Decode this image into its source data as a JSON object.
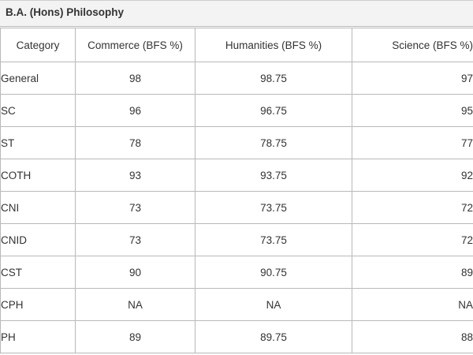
{
  "table": {
    "title": "B.A. (Hons) Philosophy",
    "headers": [
      "Category",
      "Commerce (BFS %)",
      "Humanities (BFS %)",
      "Science (BFS %)"
    ],
    "rows": [
      {
        "category": "General",
        "commerce": "98",
        "humanities": "98.75",
        "science": "97"
      },
      {
        "category": "SC",
        "commerce": "96",
        "humanities": "96.75",
        "science": "95"
      },
      {
        "category": "ST",
        "commerce": "78",
        "humanities": "78.75",
        "science": "77"
      },
      {
        "category": "COTH",
        "commerce": "93",
        "humanities": "93.75",
        "science": "92"
      },
      {
        "category": "CNI",
        "commerce": "73",
        "humanities": "73.75",
        "science": "72"
      },
      {
        "category": "CNID",
        "commerce": "73",
        "humanities": "73.75",
        "science": "72"
      },
      {
        "category": "CST",
        "commerce": "90",
        "humanities": "90.75",
        "science": "89"
      },
      {
        "category": "CPH",
        "commerce": "NA",
        "humanities": "NA",
        "science": "NA"
      },
      {
        "category": "PH",
        "commerce": "89",
        "humanities": "89.75",
        "science": "88"
      }
    ]
  }
}
